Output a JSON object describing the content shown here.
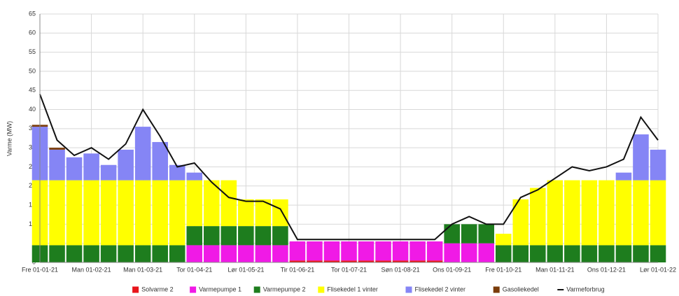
{
  "chart_data": {
    "type": "bar",
    "stacked": true,
    "y_label": "Varme (MW)",
    "categories": [
      "Fre 01-01-21",
      null,
      null,
      "Man 01-02-21",
      null,
      null,
      "Man 01-03-21",
      null,
      null,
      "Tor 01-04-21",
      null,
      null,
      "Lør 01-05-21",
      null,
      null,
      "Tir 01-06-21",
      null,
      null,
      "Tor 01-07-21",
      null,
      null,
      "Søn 01-08-21",
      null,
      null,
      "Ons 01-09-21",
      null,
      null,
      "Fre 01-10-21",
      null,
      null,
      "Man 01-11-21",
      null,
      null,
      "Ons 01-12-21",
      null,
      null,
      "Lør 01-01-22"
    ],
    "series": [
      {
        "name": "Solvarme 2",
        "color": "#e8141b",
        "values": [
          0,
          0,
          0,
          0,
          0,
          0,
          0,
          0,
          0,
          0,
          0,
          0,
          0,
          0,
          0,
          0.5,
          0.5,
          0.5,
          0.5,
          0.5,
          0.5,
          0.5,
          0.5,
          0.5,
          0,
          0,
          0,
          0,
          0,
          0,
          0,
          0,
          0,
          0,
          0,
          0,
          0
        ]
      },
      {
        "name": "Varmepumpe 1",
        "color": "#f01ae6",
        "values": [
          0,
          0,
          0,
          0,
          0,
          0,
          0,
          0,
          0,
          4.5,
          4.5,
          4.5,
          4.5,
          4.5,
          4.5,
          5,
          5,
          5,
          5,
          5,
          5,
          5,
          5,
          5,
          5,
          5,
          5,
          0,
          0,
          0,
          0,
          0,
          0,
          0,
          0,
          0,
          0
        ]
      },
      {
        "name": "Varmepumpe 2",
        "color": "#1e7d1e",
        "values": [
          4.5,
          4.5,
          4.5,
          4.5,
          4.5,
          4.5,
          4.5,
          4.5,
          4.5,
          5,
          5,
          5,
          5,
          5,
          5,
          0,
          0,
          0,
          0,
          0,
          0,
          0,
          0,
          0,
          5,
          5,
          5,
          4.5,
          4.5,
          4.5,
          4.5,
          4.5,
          4.5,
          4.5,
          4.5,
          4.5,
          4.5
        ]
      },
      {
        "name": "Flisekedel 1 vinter",
        "color": "#ffff00",
        "values": [
          17,
          17,
          17,
          17,
          17,
          17,
          17,
          17,
          17,
          12,
          12,
          12,
          7,
          7,
          7,
          0,
          0,
          0,
          0,
          0,
          0,
          0,
          0,
          0,
          0,
          0,
          0,
          3,
          12,
          15,
          17,
          17,
          17,
          17,
          17,
          17,
          17
        ]
      },
      {
        "name": "Flisekedel 2 vinter",
        "color": "#8585f5",
        "values": [
          14,
          8,
          6,
          7,
          4,
          8,
          14,
          10,
          4,
          2,
          0,
          0,
          0,
          0,
          0,
          0,
          0,
          0,
          0,
          0,
          0,
          0,
          0,
          0,
          0,
          0,
          0,
          0,
          0,
          0,
          0,
          0,
          0,
          0,
          2,
          12,
          8
        ]
      },
      {
        "name": "Gasoliekedel",
        "color": "#7a3b0a",
        "values": [
          0.5,
          0.5,
          0,
          0,
          0,
          0,
          0,
          0,
          0,
          0,
          0,
          0,
          0,
          0,
          0,
          0,
          0,
          0,
          0,
          0,
          0,
          0,
          0,
          0,
          0,
          0,
          0,
          0,
          0,
          0,
          0,
          0,
          0,
          0,
          0,
          0,
          0
        ]
      },
      {
        "name": "Varmeforbrug",
        "color": "#111111",
        "type": "line",
        "values": [
          44,
          32,
          28,
          30,
          27,
          31,
          40,
          33,
          25,
          26,
          21,
          17,
          16,
          16,
          14,
          6,
          6,
          6,
          6,
          6,
          6,
          6,
          6,
          6,
          10,
          12,
          10,
          10,
          17,
          19,
          22,
          25,
          24,
          25,
          27,
          38,
          32
        ]
      }
    ],
    "ylim": [
      0,
      65
    ],
    "yticks": [
      0,
      5,
      10,
      15,
      20,
      25,
      30,
      35,
      40,
      45,
      50,
      55,
      60,
      65
    ],
    "grid": true,
    "legend": "bottom"
  }
}
